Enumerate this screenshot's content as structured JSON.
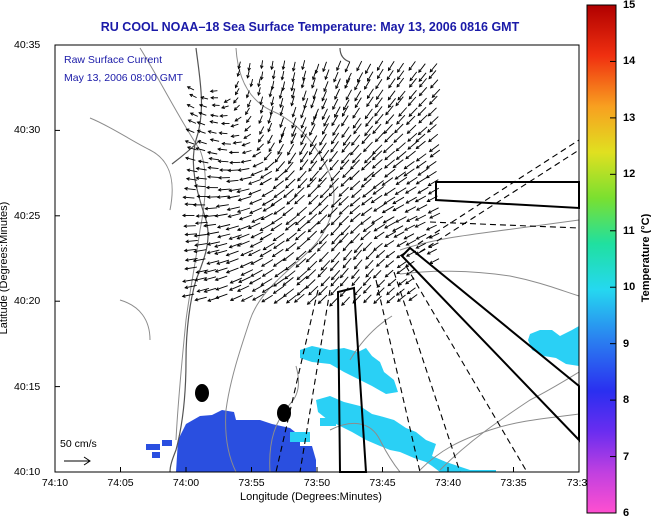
{
  "title": "RU COOL  NOAA–18  Sea Surface Temperature:  May 13, 2006 0816 GMT",
  "overlay": {
    "line1": "Raw Surface Current",
    "line2": "May 13, 2006 08:00 GMT"
  },
  "axes": {
    "xlabel": "Longitude (Degrees:Minutes)",
    "ylabel": "Latitude (Degrees:Minutes)",
    "x_ticks": [
      "74:10",
      "74:05",
      "74:00",
      "73:55",
      "73:50",
      "73:45",
      "73:40",
      "73:35",
      "73:3"
    ],
    "y_ticks": [
      "40:35",
      "40:30",
      "40:25",
      "40:20",
      "40:15",
      "40:10"
    ]
  },
  "scale": {
    "label": "50 cm/s"
  },
  "colorbar": {
    "label": "Temperature (°C)",
    "ticks": [
      "15",
      "14",
      "13",
      "12",
      "11",
      "10",
      "9",
      "8",
      "7",
      "6"
    ],
    "min": 6,
    "max": 15
  },
  "colors": {
    "title_text": "#1a1aa8",
    "sst_blue": "#2a4fe0",
    "sst_cyan": "#2ad0f5",
    "land_contour": "#8c8c8c",
    "coast": "#555555"
  }
}
